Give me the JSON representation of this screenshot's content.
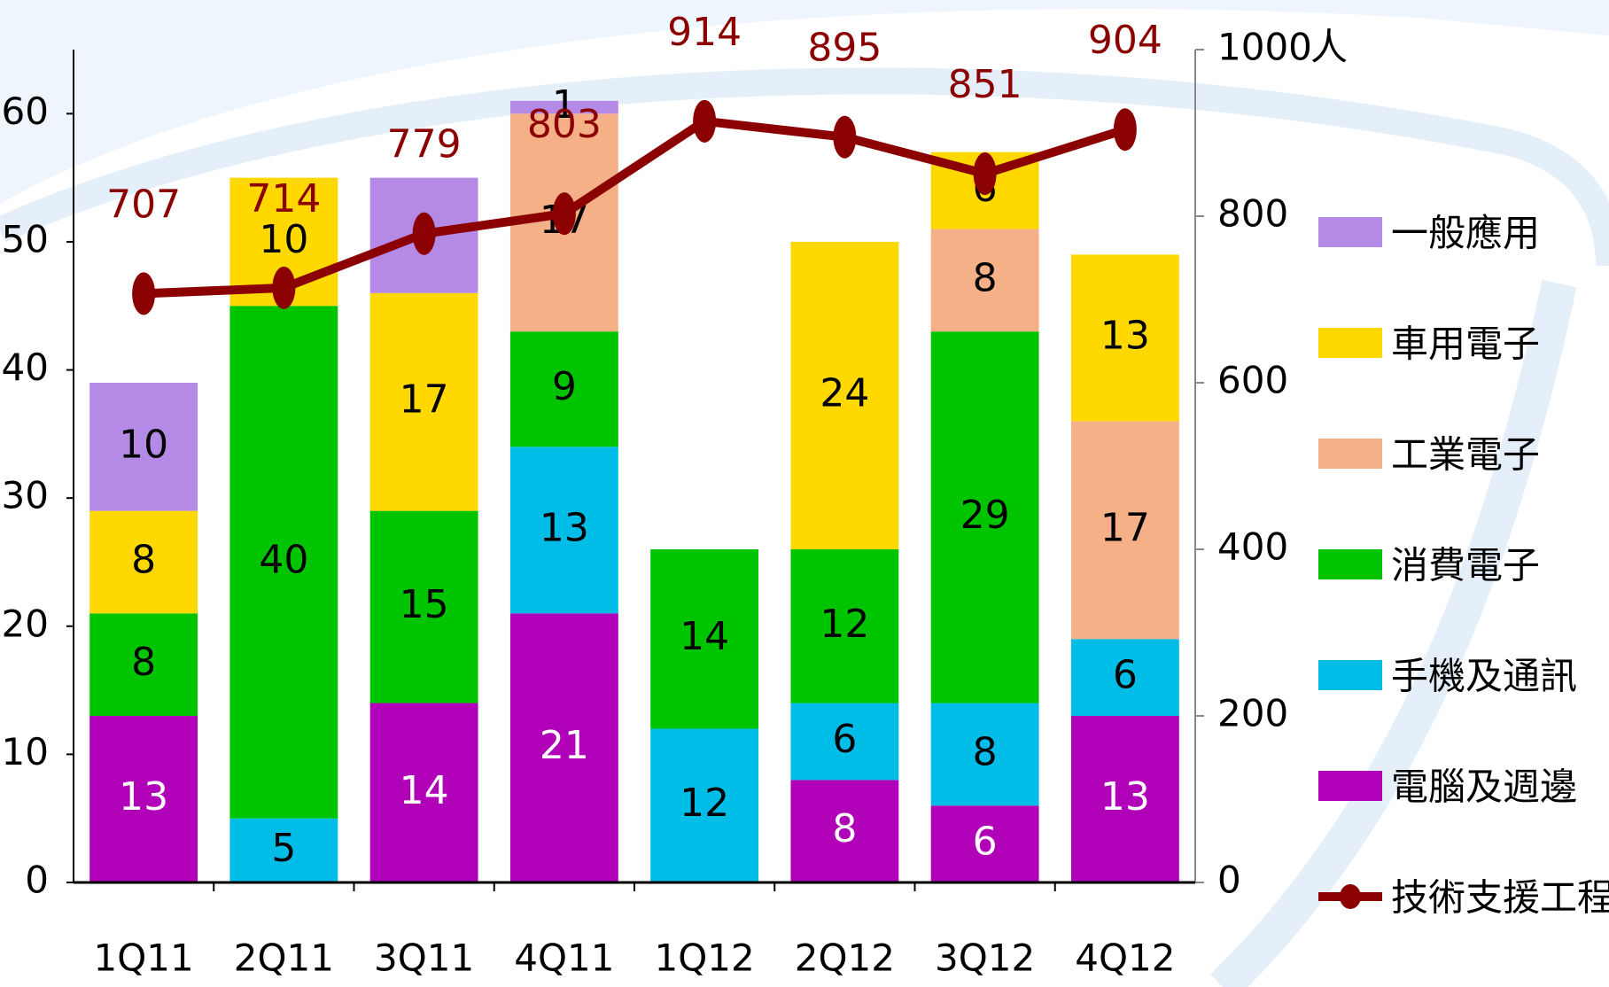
{
  "chart_data": {
    "type": "bar",
    "stacked": true,
    "categories": [
      "1Q11",
      "2Q11",
      "3Q11",
      "4Q11",
      "1Q12",
      "2Q12",
      "3Q12",
      "4Q12"
    ],
    "series": [
      {
        "name": "電腦及週邊",
        "color": "#b000b8",
        "values": [
          13,
          null,
          14,
          21,
          null,
          8,
          6,
          13
        ]
      },
      {
        "name": "手機及通訊",
        "color": "#00bde8",
        "values": [
          null,
          5,
          null,
          13,
          12,
          6,
          8,
          6
        ]
      },
      {
        "name": "消費電子",
        "color": "#00c400",
        "values": [
          8,
          40,
          15,
          9,
          14,
          12,
          29,
          null
        ]
      },
      {
        "name": "工業電子",
        "color": "#f5b088",
        "values": [
          null,
          null,
          null,
          17,
          null,
          null,
          8,
          17
        ]
      },
      {
        "name": "車用電子",
        "color": "#ffd800",
        "values": [
          8,
          10,
          17,
          null,
          null,
          24,
          6,
          13
        ]
      },
      {
        "name": "一般應用",
        "color": "#b58ae6",
        "values": [
          10,
          null,
          9,
          1,
          null,
          null,
          null,
          null
        ]
      },
      {
        "name": "技術支援工程師",
        "type": "line",
        "axis": "y2",
        "color": "#8b0000",
        "values": [
          707,
          714,
          779,
          803,
          914,
          895,
          851,
          904
        ]
      }
    ],
    "ylim": [
      0,
      65
    ],
    "yticks": [
      0,
      10,
      20,
      30,
      40,
      50,
      60
    ],
    "y2lim": [
      0,
      1000
    ],
    "y2ticks": [
      0,
      200,
      400,
      600,
      800,
      1000
    ],
    "y2label": "人"
  }
}
